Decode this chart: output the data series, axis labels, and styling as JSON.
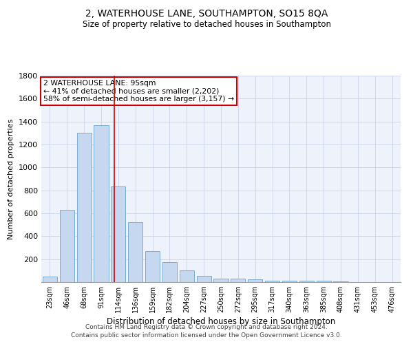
{
  "title1": "2, WATERHOUSE LANE, SOUTHAMPTON, SO15 8QA",
  "title2": "Size of property relative to detached houses in Southampton",
  "xlabel": "Distribution of detached houses by size in Southampton",
  "ylabel": "Number of detached properties",
  "categories": [
    "23sqm",
    "46sqm",
    "68sqm",
    "91sqm",
    "114sqm",
    "136sqm",
    "159sqm",
    "182sqm",
    "204sqm",
    "227sqm",
    "250sqm",
    "272sqm",
    "295sqm",
    "317sqm",
    "340sqm",
    "363sqm",
    "385sqm",
    "408sqm",
    "431sqm",
    "453sqm",
    "476sqm"
  ],
  "values": [
    50,
    630,
    1300,
    1370,
    835,
    520,
    270,
    175,
    105,
    57,
    30,
    30,
    25,
    15,
    10,
    10,
    10,
    5,
    3,
    2,
    2
  ],
  "bar_color": "#c5d8f0",
  "bar_edge_color": "#7aadd4",
  "vline_x": 3.78,
  "vline_color": "#cc0000",
  "annotation_line1": "2 WATERHOUSE LANE: 95sqm",
  "annotation_line2": "← 41% of detached houses are smaller (2,202)",
  "annotation_line3": "58% of semi-detached houses are larger (3,157) →",
  "annotation_box_color": "#cc0000",
  "ylim": [
    0,
    1800
  ],
  "yticks": [
    0,
    200,
    400,
    600,
    800,
    1000,
    1200,
    1400,
    1600,
    1800
  ],
  "grid_color": "#c8d4e8",
  "bg_color": "#eef2fa",
  "footer_line1": "Contains HM Land Registry data © Crown copyright and database right 2024.",
  "footer_line2": "Contains public sector information licensed under the Open Government Licence v3.0."
}
